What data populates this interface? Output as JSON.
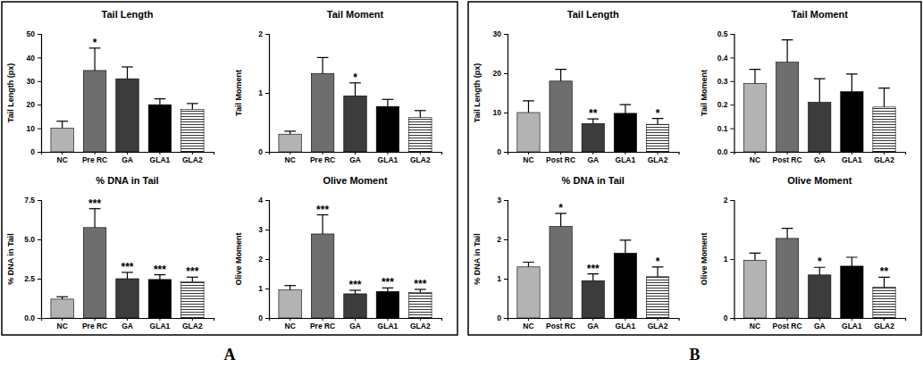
{
  "panel_labels": [
    "A",
    "B"
  ],
  "chart_data": [
    {
      "type": "bar",
      "title": "Tail Length",
      "y_label": "Tail Length (px)",
      "categories": [
        "NC",
        "Pre RC",
        "GA",
        "GLA1",
        "GLA2"
      ],
      "values": [
        10,
        34.5,
        31,
        20,
        18
      ],
      "errors": [
        3,
        9.5,
        5,
        2.5,
        2.5
      ],
      "colors": [
        "#b3b3b3",
        "#6e6e6e",
        "#3c3c3c",
        "#000000",
        "#ffffff"
      ],
      "ylim": [
        0,
        50
      ],
      "yticks": [
        0,
        10,
        20,
        30,
        40,
        50
      ],
      "annotations": [
        {
          "category": "Pre RC",
          "text": "*"
        }
      ]
    },
    {
      "type": "bar",
      "title": "Tail Moment",
      "y_label": "Tail Moment",
      "categories": [
        "NC",
        "Pre RC",
        "GA",
        "GLA1",
        "GLA2"
      ],
      "values": [
        0.3,
        1.33,
        0.95,
        0.77,
        0.58
      ],
      "errors": [
        0.05,
        0.27,
        0.22,
        0.12,
        0.12
      ],
      "colors": [
        "#b3b3b3",
        "#6e6e6e",
        "#3c3c3c",
        "#000000",
        "#ffffff"
      ],
      "ylim": [
        0,
        2
      ],
      "yticks": [
        0,
        1,
        2
      ],
      "annotations": [
        {
          "category": "GA",
          "text": "*"
        }
      ]
    },
    {
      "type": "bar",
      "title": "% DNA in Tail",
      "y_label": "% DNA in Tail",
      "categories": [
        "NC",
        "Pre RC",
        "GA",
        "GLA1",
        "GLA2"
      ],
      "values": [
        1.2,
        5.75,
        2.5,
        2.45,
        2.3
      ],
      "errors": [
        0.15,
        1.2,
        0.4,
        0.3,
        0.3
      ],
      "colors": [
        "#b3b3b3",
        "#6e6e6e",
        "#3c3c3c",
        "#000000",
        "#ffffff"
      ],
      "ylim": [
        0,
        7.5
      ],
      "yticks": [
        {
          "value": 0,
          "label": "0.0"
        },
        2.5,
        {
          "value": 5,
          "label": "5.0"
        },
        7.5
      ],
      "annotations": [
        {
          "category": "Pre RC",
          "text": "***"
        },
        {
          "category": "GA",
          "text": "***"
        },
        {
          "category": "GLA1",
          "text": "***"
        },
        {
          "category": "GLA2",
          "text": "***"
        }
      ]
    },
    {
      "type": "bar",
      "title": "Olive Moment",
      "y_label": "Olive Moment",
      "categories": [
        "NC",
        "Pre RC",
        "GA",
        "GLA1",
        "GLA2"
      ],
      "values": [
        0.95,
        2.85,
        0.82,
        0.9,
        0.87
      ],
      "errors": [
        0.15,
        0.65,
        0.12,
        0.12,
        0.1
      ],
      "colors": [
        "#b3b3b3",
        "#6e6e6e",
        "#3c3c3c",
        "#000000",
        "#ffffff"
      ],
      "ylim": [
        0,
        4
      ],
      "yticks": [
        0,
        1,
        2,
        3,
        4
      ],
      "annotations": [
        {
          "category": "Pre RC",
          "text": "***"
        },
        {
          "category": "GA",
          "text": "***"
        },
        {
          "category": "GLA1",
          "text": "***"
        },
        {
          "category": "GLA2",
          "text": "***"
        }
      ]
    },
    {
      "type": "bar",
      "title": "Tail Length",
      "y_label": "Tail Length (px)",
      "categories": [
        "NC",
        "Post RC",
        "GA",
        "GLA1",
        "GLA2"
      ],
      "values": [
        10,
        18,
        7.2,
        9.8,
        7
      ],
      "errors": [
        3,
        3,
        1.2,
        2.2,
        1.5
      ],
      "colors": [
        "#b3b3b3",
        "#6e6e6e",
        "#3c3c3c",
        "#000000",
        "#ffffff"
      ],
      "ylim": [
        0,
        30
      ],
      "yticks": [
        0,
        10,
        20,
        30
      ],
      "annotations": [
        {
          "category": "GA",
          "text": "**"
        },
        {
          "category": "GLA2",
          "text": "*"
        }
      ]
    },
    {
      "type": "bar",
      "title": "Tail Moment",
      "y_label": "Tail Moment",
      "categories": [
        "NC",
        "Post RC",
        "GA",
        "GLA1",
        "GLA2"
      ],
      "values": [
        0.29,
        0.38,
        0.21,
        0.255,
        0.19
      ],
      "errors": [
        0.06,
        0.095,
        0.1,
        0.075,
        0.08
      ],
      "colors": [
        "#b3b3b3",
        "#6e6e6e",
        "#3c3c3c",
        "#000000",
        "#ffffff"
      ],
      "ylim": [
        0,
        0.5
      ],
      "yticks": [
        {
          "value": 0,
          "label": "0.0"
        },
        0.1,
        0.2,
        0.3,
        0.4,
        0.5
      ]
    },
    {
      "type": "bar",
      "title": "% DNA in Tail",
      "y_label": "% DNA in Tail",
      "categories": [
        "NC",
        "Post RC",
        "GA",
        "GLA1",
        "GLA2"
      ],
      "values": [
        1.3,
        2.33,
        0.95,
        1.65,
        1.05
      ],
      "errors": [
        0.12,
        0.33,
        0.17,
        0.33,
        0.25
      ],
      "colors": [
        "#b3b3b3",
        "#6e6e6e",
        "#3c3c3c",
        "#000000",
        "#ffffff"
      ],
      "ylim": [
        0,
        3
      ],
      "yticks": [
        0,
        1,
        2,
        3
      ],
      "annotations": [
        {
          "category": "Post RC",
          "text": "*"
        },
        {
          "category": "GA",
          "text": "***"
        },
        {
          "category": "GLA2",
          "text": "*"
        }
      ]
    },
    {
      "type": "bar",
      "title": "Olive Moment",
      "y_label": "Olive Moment",
      "categories": [
        "NC",
        "Post RC",
        "GA",
        "GLA1",
        "GLA2"
      ],
      "values": [
        0.98,
        1.35,
        0.73,
        0.88,
        0.52
      ],
      "errors": [
        0.12,
        0.17,
        0.13,
        0.15,
        0.17
      ],
      "colors": [
        "#b3b3b3",
        "#6e6e6e",
        "#3c3c3c",
        "#000000",
        "#ffffff"
      ],
      "ylim": [
        0,
        2
      ],
      "yticks": [
        0,
        1,
        2
      ],
      "annotations": [
        {
          "category": "GA",
          "text": "*"
        },
        {
          "category": "GLA2",
          "text": "**"
        }
      ]
    }
  ]
}
